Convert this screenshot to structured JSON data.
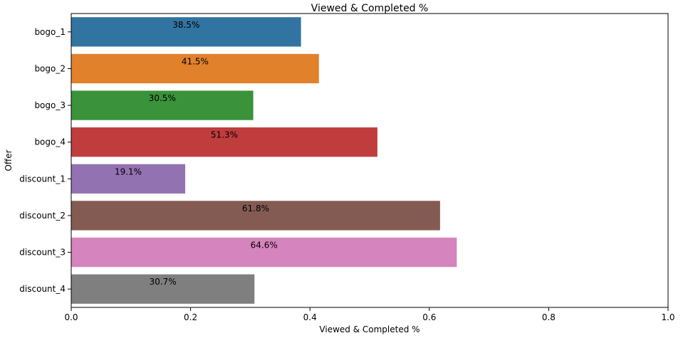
{
  "chart_data": {
    "type": "bar",
    "orientation": "horizontal",
    "title": "Viewed & Completed %",
    "xlabel": "Viewed & Completed %",
    "ylabel": "Offer",
    "xlim": [
      0,
      1.0
    ],
    "xticks": [
      "0.0",
      "0.2",
      "0.4",
      "0.6",
      "0.8",
      "1.0"
    ],
    "categories": [
      "bogo_1",
      "bogo_2",
      "bogo_3",
      "bogo_4",
      "discount_1",
      "discount_2",
      "discount_3",
      "discount_4"
    ],
    "values": [
      0.385,
      0.415,
      0.305,
      0.513,
      0.191,
      0.618,
      0.646,
      0.307
    ],
    "data_labels": [
      "38.5%",
      "41.5%",
      "30.5%",
      "51.3%",
      "19.1%",
      "61.8%",
      "64.6%",
      "30.7%"
    ],
    "colors": [
      "#3274a1",
      "#e1812c",
      "#3a923a",
      "#c03d3e",
      "#9372b2",
      "#845b53",
      "#d684bd",
      "#7f7f7f"
    ],
    "grid": false,
    "legend": "none"
  }
}
